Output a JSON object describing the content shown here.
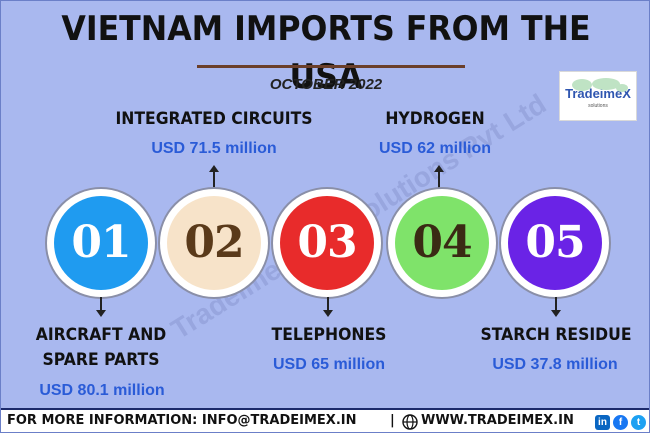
{
  "header": {
    "title": "VIETNAM IMPORTS FROM THE USA",
    "subtitle": "OCTOBER 2022"
  },
  "logo": {
    "brand": "TradeimeX",
    "tagline": "solutions"
  },
  "watermark": "Tradeimex Info Solutions Pvt Ltd",
  "items": [
    {
      "number": "01",
      "label": "AIRCRAFT AND SPARE PARTS",
      "label_line1": "AIRCRAFT AND",
      "label_line2": "SPARE PARTS",
      "value": "USD 80.1 million",
      "color": "#1f9bf0"
    },
    {
      "number": "02",
      "label": "INTEGRATED CIRCUITS",
      "value": "USD 71.5 million",
      "color": "#f7e3c9",
      "num_color": "#5a3a1a"
    },
    {
      "number": "03",
      "label": "TELEPHONES",
      "value": "USD 65 million",
      "color": "#e82b2b"
    },
    {
      "number": "04",
      "label": "HYDROGEN",
      "value": "USD 62 million",
      "color": "#7fe36a",
      "num_color": "#3a2a14"
    },
    {
      "number": "05",
      "label": "STARCH RESIDUE",
      "value": "USD 37.8 million",
      "color": "#6a23e6"
    }
  ],
  "footer": {
    "info": "FOR MORE INFORMATION: INFO@TRADEIMEX.IN",
    "separator": "|",
    "website": "WWW.TRADEIMEX.IN",
    "social": [
      "in",
      "f",
      "t"
    ]
  }
}
